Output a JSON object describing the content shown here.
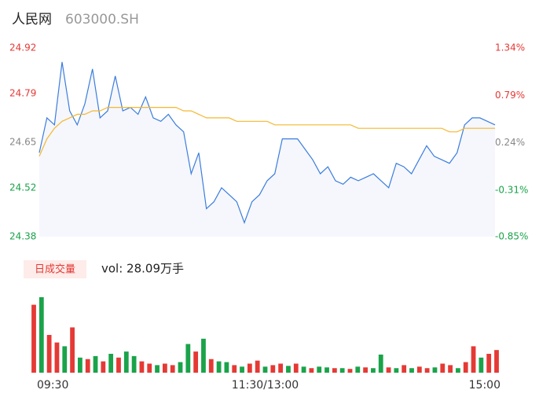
{
  "chart_data": [
    {
      "type": "line",
      "title": "人民网",
      "subtitle": "603000.SH",
      "x": [
        0,
        4,
        8,
        12,
        16,
        20,
        24,
        28,
        32,
        36,
        40,
        44,
        48,
        52,
        56,
        60,
        64,
        68,
        72,
        76,
        80,
        84,
        88,
        92,
        96,
        100,
        104,
        108,
        112,
        116,
        120,
        124,
        128,
        132,
        136,
        140,
        144,
        148,
        152,
        156,
        160,
        164,
        168,
        172,
        176,
        180,
        184,
        188,
        192,
        196,
        200,
        204,
        208,
        212,
        216,
        220,
        224,
        228,
        232,
        236,
        240
      ],
      "xlim": [
        0,
        240
      ],
      "ylim": [
        24.38,
        24.92
      ],
      "yticks": [
        24.92,
        24.79,
        24.65,
        24.52,
        24.38
      ],
      "ytick_colors": [
        "#e53935",
        "#e53935",
        "#888888",
        "#1aa34a",
        "#1aa34a"
      ],
      "y2lim": [
        -0.85,
        1.34
      ],
      "y2ticks": [
        {
          "value": 1.34,
          "label": "1.34%"
        },
        {
          "value": 0.79,
          "label": "0.79%"
        },
        {
          "value": 0.24,
          "label": "0.24%"
        },
        {
          "value": -0.31,
          "label": "-0.31%"
        },
        {
          "value": -0.85,
          "label": "-0.85%"
        }
      ],
      "series": [
        {
          "name": "price",
          "color": "#3b7ddd",
          "fill": "#f5f7fc",
          "values": [
            24.62,
            24.72,
            24.7,
            24.88,
            24.74,
            24.7,
            24.76,
            24.86,
            24.72,
            24.74,
            24.84,
            24.74,
            24.75,
            24.73,
            24.78,
            24.72,
            24.71,
            24.73,
            24.7,
            24.68,
            24.56,
            24.62,
            24.46,
            24.48,
            24.52,
            24.5,
            24.48,
            24.42,
            24.48,
            24.5,
            24.54,
            24.56,
            24.66,
            24.66,
            24.66,
            24.63,
            24.6,
            24.56,
            24.58,
            24.54,
            24.53,
            24.55,
            24.54,
            24.55,
            24.56,
            24.54,
            24.52,
            24.59,
            24.58,
            24.56,
            24.6,
            24.64,
            24.61,
            24.6,
            24.59,
            24.62,
            24.7,
            24.72,
            24.72,
            24.71,
            24.7
          ]
        },
        {
          "name": "avg",
          "color": "#f5b731",
          "values": [
            24.61,
            24.66,
            24.69,
            24.71,
            24.72,
            24.73,
            24.73,
            24.74,
            24.74,
            24.75,
            24.75,
            24.75,
            24.75,
            24.75,
            24.75,
            24.75,
            24.75,
            24.75,
            24.75,
            24.74,
            24.74,
            24.73,
            24.72,
            24.72,
            24.72,
            24.72,
            24.71,
            24.71,
            24.71,
            24.71,
            24.71,
            24.7,
            24.7,
            24.7,
            24.7,
            24.7,
            24.7,
            24.7,
            24.7,
            24.7,
            24.7,
            24.7,
            24.69,
            24.69,
            24.69,
            24.69,
            24.69,
            24.69,
            24.69,
            24.69,
            24.69,
            24.69,
            24.69,
            24.69,
            24.68,
            24.68,
            24.69,
            24.69,
            24.69,
            24.69,
            24.69
          ]
        }
      ]
    },
    {
      "type": "bar",
      "badge": "日成交量",
      "annotation": "vol: 28.09万手",
      "x": [
        0,
        4,
        8,
        12,
        16,
        20,
        24,
        28,
        32,
        36,
        40,
        44,
        48,
        52,
        56,
        60,
        64,
        68,
        72,
        76,
        80,
        84,
        88,
        92,
        96,
        100,
        104,
        108,
        112,
        116,
        120,
        124,
        128,
        132,
        136,
        140,
        144,
        148,
        152,
        156,
        160,
        164,
        168,
        172,
        176,
        180,
        184,
        188,
        192,
        196,
        200,
        204,
        208,
        212,
        216,
        220,
        224,
        228,
        232,
        236,
        240
      ],
      "xlim": [
        0,
        240
      ],
      "xticks": [
        {
          "value": 0,
          "label": "09:30"
        },
        {
          "value": 120,
          "label": "11:30/13:00"
        },
        {
          "value": 240,
          "label": "15:00"
        }
      ],
      "ylim": [
        0,
        100
      ],
      "values": [
        90,
        100,
        50,
        40,
        35,
        60,
        20,
        18,
        22,
        15,
        25,
        20,
        28,
        22,
        15,
        12,
        10,
        12,
        10,
        14,
        38,
        28,
        45,
        18,
        15,
        14,
        10,
        8,
        12,
        16,
        8,
        10,
        12,
        9,
        12,
        8,
        6,
        8,
        7,
        6,
        6,
        5,
        8,
        7,
        6,
        24,
        7,
        6,
        10,
        6,
        8,
        6,
        7,
        12,
        10,
        6,
        14,
        35,
        20,
        25,
        30
      ],
      "colors": [
        "#e53935",
        "#1aa34a",
        "#e53935",
        "#e53935",
        "#1aa34a",
        "#e53935",
        "#1aa34a",
        "#e53935",
        "#1aa34a",
        "#e53935",
        "#1aa34a",
        "#e53935",
        "#1aa34a",
        "#1aa34a",
        "#e53935",
        "#e53935",
        "#1aa34a",
        "#e53935",
        "#e53935",
        "#1aa34a",
        "#1aa34a",
        "#e53935",
        "#1aa34a",
        "#e53935",
        "#1aa34a",
        "#1aa34a",
        "#e53935",
        "#1aa34a",
        "#e53935",
        "#e53935",
        "#1aa34a",
        "#e53935",
        "#e53935",
        "#1aa34a",
        "#e53935",
        "#1aa34a",
        "#e53935",
        "#1aa34a",
        "#1aa34a",
        "#e53935",
        "#1aa34a",
        "#e53935",
        "#1aa34a",
        "#e53935",
        "#1aa34a",
        "#1aa34a",
        "#e53935",
        "#1aa34a",
        "#e53935",
        "#1aa34a",
        "#e53935",
        "#e53935",
        "#1aa34a",
        "#e53935",
        "#e53935",
        "#1aa34a",
        "#e53935",
        "#e53935",
        "#1aa34a",
        "#e53935",
        "#e53935"
      ]
    }
  ]
}
